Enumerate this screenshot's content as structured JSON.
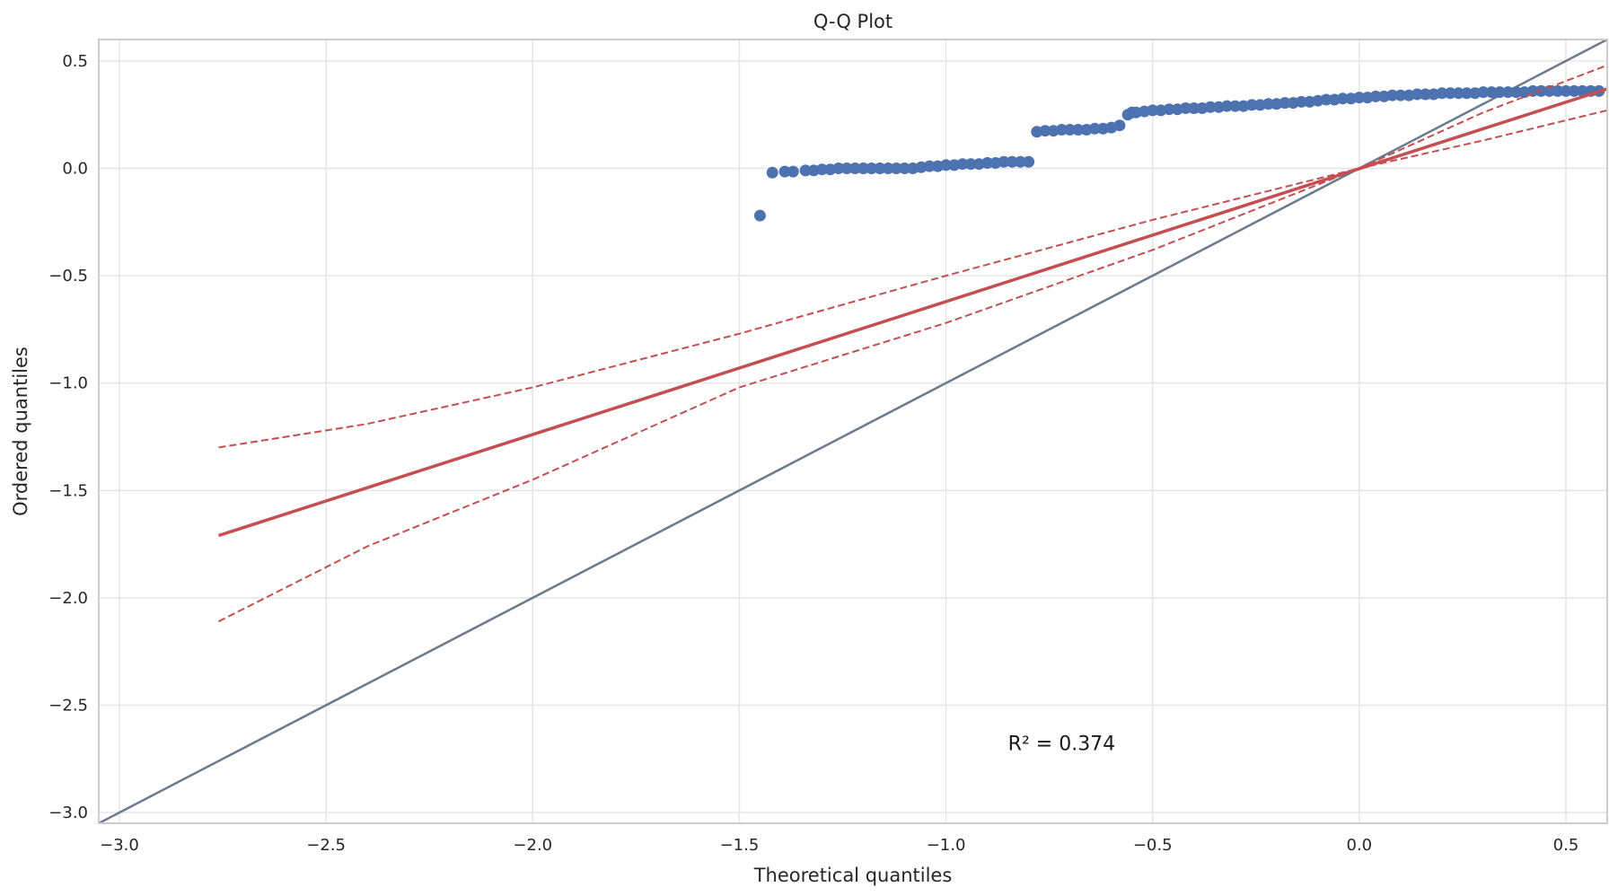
{
  "chart_data": {
    "type": "scatter",
    "title": "Q-Q Plot",
    "xlabel": "Theoretical quantiles",
    "ylabel": "Ordered quantiles",
    "xlim": [
      -3.05,
      0.6
    ],
    "ylim": [
      -3.05,
      0.6
    ],
    "xticks": [
      -3.0,
      -2.5,
      -2.0,
      -1.5,
      -1.0,
      -0.5,
      0.0,
      0.5
    ],
    "yticks": [
      -3.0,
      -2.5,
      -2.0,
      -1.5,
      -1.0,
      -0.5,
      0.0,
      0.5
    ],
    "xtick_labels": [
      "−3.0",
      "−2.5",
      "−2.0",
      "−1.5",
      "−1.0",
      "−0.5",
      "0.0",
      "0.5"
    ],
    "ytick_labels": [
      "−3.0",
      "−2.5",
      "−2.0",
      "−1.5",
      "−1.0",
      "−0.5",
      "0.0",
      "0.5"
    ],
    "grid": true,
    "annotation": {
      "text": "R² = 0.374",
      "x": -0.72,
      "y": -2.68
    },
    "colors": {
      "points": "#4c72b0",
      "fit_line": "#c44e52",
      "reference_line": "#6b7b8c",
      "grid": "#e5e5e5",
      "spine": "#cccccc"
    },
    "series": [
      {
        "kind": "points",
        "x": [
          -1.45,
          -1.42,
          -1.39,
          -1.37,
          -1.34,
          -1.32,
          -1.3,
          -1.28,
          -1.26,
          -1.24,
          -1.22,
          -1.2,
          -1.18,
          -1.16,
          -1.14,
          -1.12,
          -1.1,
          -1.08,
          -1.06,
          -1.04,
          -1.02,
          -1.0,
          -0.98,
          -0.96,
          -0.94,
          -0.92,
          -0.9,
          -0.88,
          -0.86,
          -0.84,
          -0.82,
          -0.8,
          -0.78,
          -0.76,
          -0.74,
          -0.72,
          -0.7,
          -0.68,
          -0.66,
          -0.64,
          -0.62,
          -0.6,
          -0.58,
          -0.56,
          -0.55,
          -0.54,
          -0.52,
          -0.5,
          -0.48,
          -0.46,
          -0.44,
          -0.42,
          -0.4,
          -0.38,
          -0.36,
          -0.34,
          -0.32,
          -0.3,
          -0.28,
          -0.26,
          -0.24,
          -0.22,
          -0.2,
          -0.18,
          -0.16,
          -0.14,
          -0.12,
          -0.1,
          -0.08,
          -0.06,
          -0.04,
          -0.02,
          0.0,
          0.02,
          0.04,
          0.06,
          0.08,
          0.1,
          0.12,
          0.14,
          0.16,
          0.18,
          0.2,
          0.22,
          0.24,
          0.26,
          0.28,
          0.3,
          0.32,
          0.34,
          0.36,
          0.38,
          0.4,
          0.42,
          0.44,
          0.46,
          0.48,
          0.5,
          0.52,
          0.54,
          0.56,
          0.58
        ],
        "y": [
          -0.22,
          -0.02,
          -0.015,
          -0.015,
          -0.01,
          -0.01,
          -0.005,
          -0.005,
          0.0,
          0.0,
          0.0,
          0.0,
          0.0,
          0.0,
          0.0,
          0.0,
          0.0,
          0.0,
          0.005,
          0.01,
          0.01,
          0.015,
          0.015,
          0.02,
          0.02,
          0.02,
          0.025,
          0.025,
          0.03,
          0.03,
          0.03,
          0.03,
          0.17,
          0.175,
          0.175,
          0.18,
          0.18,
          0.18,
          0.18,
          0.185,
          0.185,
          0.19,
          0.2,
          0.25,
          0.26,
          0.26,
          0.265,
          0.27,
          0.27,
          0.275,
          0.275,
          0.28,
          0.28,
          0.28,
          0.285,
          0.285,
          0.29,
          0.29,
          0.29,
          0.295,
          0.295,
          0.3,
          0.3,
          0.305,
          0.305,
          0.31,
          0.31,
          0.315,
          0.32,
          0.32,
          0.325,
          0.325,
          0.33,
          0.33,
          0.335,
          0.335,
          0.34,
          0.34,
          0.34,
          0.345,
          0.345,
          0.345,
          0.35,
          0.35,
          0.35,
          0.35,
          0.35,
          0.355,
          0.355,
          0.355,
          0.355,
          0.355,
          0.355,
          0.36,
          0.36,
          0.36,
          0.36,
          0.36,
          0.36,
          0.36,
          0.36,
          0.36
        ]
      },
      {
        "kind": "fit-line",
        "x": [
          -2.76,
          0.6
        ],
        "y": [
          -1.71,
          0.37
        ]
      },
      {
        "kind": "confidence-upper",
        "x": [
          -2.76,
          -2.4,
          -2.0,
          -1.5,
          -1.0,
          -0.5,
          0.0,
          0.3,
          0.6
        ],
        "y": [
          -1.3,
          -1.19,
          -1.02,
          -0.77,
          -0.5,
          -0.24,
          0.0,
          0.26,
          0.48
        ]
      },
      {
        "kind": "confidence-lower",
        "x": [
          -2.76,
          -2.4,
          -2.0,
          -1.5,
          -1.0,
          -0.5,
          0.0,
          0.3,
          0.6
        ],
        "y": [
          -2.11,
          -1.76,
          -1.45,
          -1.02,
          -0.72,
          -0.38,
          0.0,
          0.13,
          0.27
        ]
      },
      {
        "kind": "reference-line",
        "x": [
          -3.05,
          0.6
        ],
        "y": [
          -3.05,
          0.6
        ]
      }
    ]
  }
}
